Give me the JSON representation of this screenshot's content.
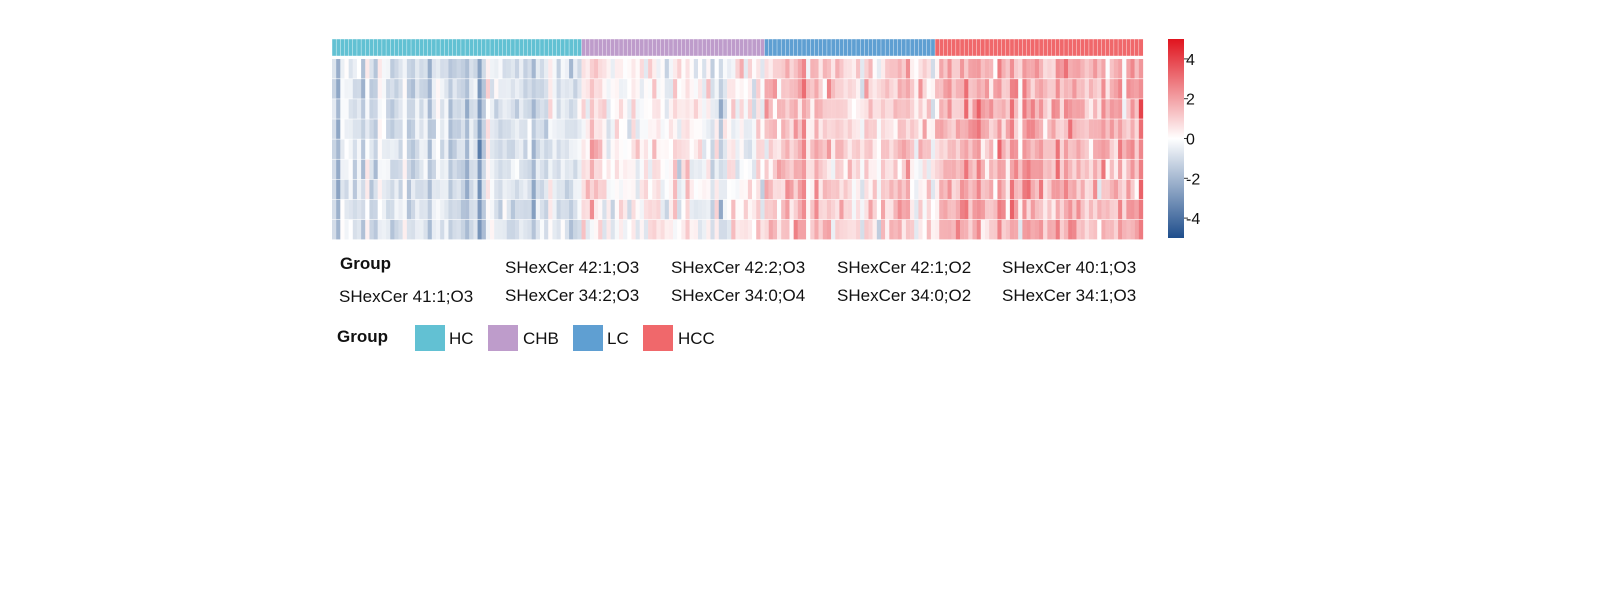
{
  "chart_data": {
    "type": "heatmap",
    "groups": [
      {
        "name": "HC",
        "n_samples": 60,
        "color": "#62C1D3",
        "mean_level": -0.9
      },
      {
        "name": "CHB",
        "n_samples": 44,
        "color": "#BE9CCB",
        "mean_level": 0.1
      },
      {
        "name": "LC",
        "n_samples": 41,
        "color": "#5F9FD2",
        "mean_level": 0.9
      },
      {
        "name": "HCC",
        "n_samples": 50,
        "color": "#F0686B",
        "mean_level": 1.5
      }
    ],
    "features": [
      "SHexCer 41:1;O3",
      "SHexCer 42:1;O3",
      "SHexCer 34:2;O3",
      "SHexCer 42:2;O3",
      "SHexCer 34:0;O4",
      "SHexCer 42:1;O2",
      "SHexCer 34:0;O2",
      "SHexCer 40:1;O3",
      "SHexCer 34:1;O3"
    ],
    "annotation_label": "Group",
    "color_scale": {
      "min": -5,
      "max": 5,
      "ticks": [
        "4",
        "2",
        "0",
        "-2",
        "-4"
      ],
      "tick_values": [
        4,
        2,
        0,
        -2,
        -4
      ],
      "low_color": "#1F4E8C",
      "mid_color": "#FFFFFF",
      "high_color": "#E0141E"
    }
  },
  "legend": {
    "title": "Group",
    "items": [
      {
        "label": "HC",
        "color": "#62C1D3"
      },
      {
        "label": "CHB",
        "color": "#BE9CCB"
      },
      {
        "label": "LC",
        "color": "#5F9FD2"
      },
      {
        "label": "HCC",
        "color": "#F0686B"
      }
    ]
  }
}
